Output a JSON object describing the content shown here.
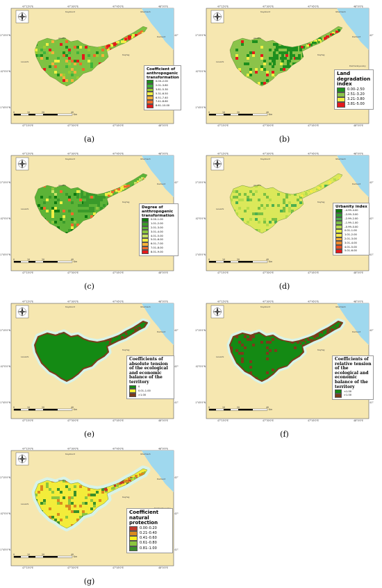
{
  "map_labels": {
    "lon_ticks": [
      "47°15'0\"E",
      "47°30'0\"E",
      "47°45'0\"E",
      "48°0'0\"E"
    ],
    "lat_ticks": [
      "42°15'0\"N",
      "42°0'0\"N",
      "41°45'0\"N"
    ],
    "places": [
      "Kayakent",
      "Izberbash",
      "Levashi",
      "Akusha",
      "Dakhadayevsky",
      "Derbent",
      "Kaytag"
    ],
    "scale_ticks": [
      "0",
      "10",
      "20",
      "40"
    ],
    "scale_unit": "Km"
  },
  "colors": {
    "sea": "#9fd8ee",
    "land": "#f6e7b0",
    "buffer": "#d8f3e8"
  },
  "panels": [
    {
      "caption": "(a)",
      "title": "Coefficient of anthropogenic transformation",
      "title_style": "small",
      "items": [
        {
          "label": "0.00–2.00",
          "color": "#1e8f1e"
        },
        {
          "label": "2.01–3.80",
          "color": "#3fb33a"
        },
        {
          "label": "3.81–5.30",
          "color": "#9acd32"
        },
        {
          "label": "5.31–6.50",
          "color": "#f1ef45"
        },
        {
          "label": "6.51–7.40",
          "color": "#f4b13a"
        },
        {
          "label": "7.41–8.60",
          "color": "#ef6a2a"
        },
        {
          "label": "8.61–10.00",
          "color": "#e41a1c"
        }
      ],
      "base": "#7fc242",
      "cells": [
        "#3fb33a",
        "#1e8f1e",
        "#9acd32",
        "#f1ef45",
        "#f4b13a",
        "#ef6a2a",
        "#e41a1c"
      ],
      "strip": [
        "#f1ef45",
        "#ef6a2a",
        "#e41a1c"
      ]
    },
    {
      "caption": "(b)",
      "title": "Land degradation index",
      "title_style": "big",
      "items": [
        {
          "label": "0.00–2.50",
          "color": "#1e8f1e"
        },
        {
          "label": "2.51–3.20",
          "color": "#8bc34a"
        },
        {
          "label": "3.21–3.80",
          "color": "#f1ef45"
        },
        {
          "label": "3.81–5.00",
          "color": "#e41a1c"
        }
      ],
      "base": "#8bc34a",
      "cells": [
        "#1e8f1e",
        "#1e8f1e",
        "#f1ef45",
        "#e41a1c"
      ],
      "strip": [
        "#1e8f1e",
        "#e41a1c",
        "#f1ef45"
      ]
    },
    {
      "caption": "(c)",
      "title": "Degree of anthropogenic transformation",
      "title_style": "small",
      "items": [
        {
          "label": "0.00–1.00",
          "color": "#0f7a0f"
        },
        {
          "label": "1.01–2.00",
          "color": "#3a9a2a"
        },
        {
          "label": "2.01–3.00",
          "color": "#5cb337"
        },
        {
          "label": "3.01–4.00",
          "color": "#8cc63f"
        },
        {
          "label": "4.01–5.00",
          "color": "#c9e265"
        },
        {
          "label": "5.01–6.00",
          "color": "#f1ef45"
        },
        {
          "label": "6.01–7.00",
          "color": "#f4b13a"
        },
        {
          "label": "7.01–8.00",
          "color": "#ef6a2a"
        },
        {
          "label": "8.01–9.00",
          "color": "#e41a1c"
        }
      ],
      "base": "#5cb337",
      "cells": [
        "#3a9a2a",
        "#0f7a0f",
        "#8cc63f",
        "#c9e265",
        "#f1ef45",
        "#ef6a2a"
      ],
      "strip": [
        "#f1ef45",
        "#c9e265",
        "#ef6a2a"
      ]
    },
    {
      "caption": "(d)",
      "title": "Urbanity index",
      "title_style": "small",
      "items": [
        {
          "label": "–4.99–4.00",
          "color": "#0f7a0f"
        },
        {
          "label": "–3.99–3.00",
          "color": "#2f9a2f"
        },
        {
          "label": "–2.99–2.00",
          "color": "#4caf50"
        },
        {
          "label": "–1.99–1.00",
          "color": "#7bc043"
        },
        {
          "label": "–0.99–0.00",
          "color": "#b6dc4b"
        },
        {
          "label": "0.01–1.00",
          "color": "#e6ef4a"
        },
        {
          "label": "1.01–2.00",
          "color": "#f6e94a"
        },
        {
          "label": "2.01–3.00",
          "color": "#f4b13a"
        },
        {
          "label": "3.01–4.00",
          "color": "#ef8a2a"
        },
        {
          "label": "4.01–5.00",
          "color": "#ea4f22"
        },
        {
          "label": "5.01–6.00",
          "color": "#e41a1c"
        }
      ],
      "base": "#dbe85a",
      "cells": [
        "#7bc043",
        "#4caf50",
        "#b6dc4b",
        "#7bc043"
      ],
      "strip": [
        "#dbe85a",
        "#b6dc4b",
        "#f6e94a"
      ]
    },
    {
      "caption": "(e)",
      "title": "Coefficients of absolute tension of the ecological and economic balance of the territory",
      "title_style": "serif",
      "items": [
        {
          "label": "0",
          "color": "#148a14"
        },
        {
          "label": "0.01–1.00",
          "color": "#f6ee34"
        },
        {
          "label": ">1.00",
          "color": "#7b3b1a"
        }
      ],
      "base": "#148a14",
      "cells": [
        "#148a14"
      ],
      "strip": [
        "#148a14",
        "#7b3b1a"
      ],
      "outline": "#7b3b1a"
    },
    {
      "caption": "(f)",
      "title": "Coefficients of relative tension of the ecological and economic balance of the territory",
      "title_style": "serif",
      "items": [
        {
          "label": "<1.00",
          "color": "#148a14"
        },
        {
          "label": ">1.00",
          "color": "#7b3b1a"
        }
      ],
      "base": "#148a14",
      "cells": [
        "#148a14",
        "#7b3b1a"
      ],
      "strip": [
        "#7b3b1a",
        "#148a14"
      ],
      "outline": "#7b3b1a"
    },
    {
      "caption": "(g)",
      "title": "Coefficient natural protection",
      "title_style": "big",
      "items": [
        {
          "label": "0.00–0.20",
          "color": "#c0392b"
        },
        {
          "label": "0.21–0.40",
          "color": "#d98a1f"
        },
        {
          "label": "0.41–0.60",
          "color": "#f6ee1f"
        },
        {
          "label": "0.61–0.80",
          "color": "#8cc63f"
        },
        {
          "label": "0.81–1.00",
          "color": "#3a8f2a"
        }
      ],
      "base": "#f3ec3a",
      "cells": [
        "#8cc63f",
        "#3a8f2a",
        "#d98a1f"
      ],
      "strip": [
        "#8cc63f",
        "#d98a1f",
        "#c0392b"
      ]
    }
  ]
}
